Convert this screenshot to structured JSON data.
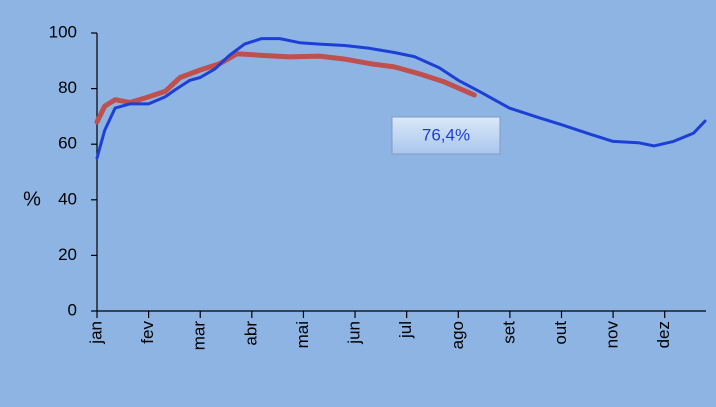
{
  "chart_data": {
    "type": "line",
    "y_label": "%",
    "annotation": "76,4%",
    "xlim": [
      0,
      11.8
    ],
    "xticks": [
      {
        "value": 0,
        "label": "jan"
      },
      {
        "value": 1,
        "label": "fev"
      },
      {
        "value": 2,
        "label": "mar"
      },
      {
        "value": 3,
        "label": "abr"
      },
      {
        "value": 4,
        "label": "mai"
      },
      {
        "value": 5,
        "label": "jun"
      },
      {
        "value": 6,
        "label": "jul"
      },
      {
        "value": 7,
        "label": "ago"
      },
      {
        "value": 8,
        "label": "set"
      },
      {
        "value": 9,
        "label": "out"
      },
      {
        "value": 10,
        "label": "nov"
      },
      {
        "value": 11,
        "label": "dez"
      }
    ],
    "ylim": [
      0,
      100
    ],
    "yticks": [
      0,
      20,
      40,
      60,
      80,
      100
    ],
    "series": [
      {
        "color": "#1c3fd6",
        "x": [
          0,
          0.15,
          0.35,
          0.64,
          1,
          1.32,
          1.51,
          1.8,
          2,
          2.28,
          2.57,
          2.86,
          3.19,
          3.54,
          3.93,
          4.31,
          4.8,
          5.28,
          5.76,
          6.15,
          6.63,
          7,
          7.41,
          7.99,
          8.57,
          9,
          9.54,
          10,
          10.5,
          10.79,
          11.17,
          11.56,
          11.78
        ],
        "values": [
          55,
          65,
          73,
          74.5,
          74.5,
          77,
          79.5,
          83,
          84,
          87,
          92,
          96,
          98,
          98,
          96.5,
          96,
          95.5,
          94.5,
          93,
          91.5,
          87.5,
          83,
          79,
          73,
          69.5,
          67,
          63.7,
          61,
          60.5,
          59.4,
          61,
          64,
          68.3
        ]
      },
      {
        "color": "#c0504d",
        "x": [
          0,
          0.15,
          0.35,
          0.64,
          1,
          1.32,
          1.61,
          2,
          2.38,
          2.71,
          3.15,
          3.73,
          4.31,
          4.8,
          5.28,
          5.76,
          6.25,
          6.73,
          7.31
        ],
        "values": [
          68,
          73.7,
          76,
          75,
          77,
          79,
          84,
          86.7,
          89,
          92.5,
          92,
          91.4,
          91.7,
          90.6,
          89,
          87.8,
          85.3,
          82.4,
          77.7
        ]
      }
    ]
  }
}
